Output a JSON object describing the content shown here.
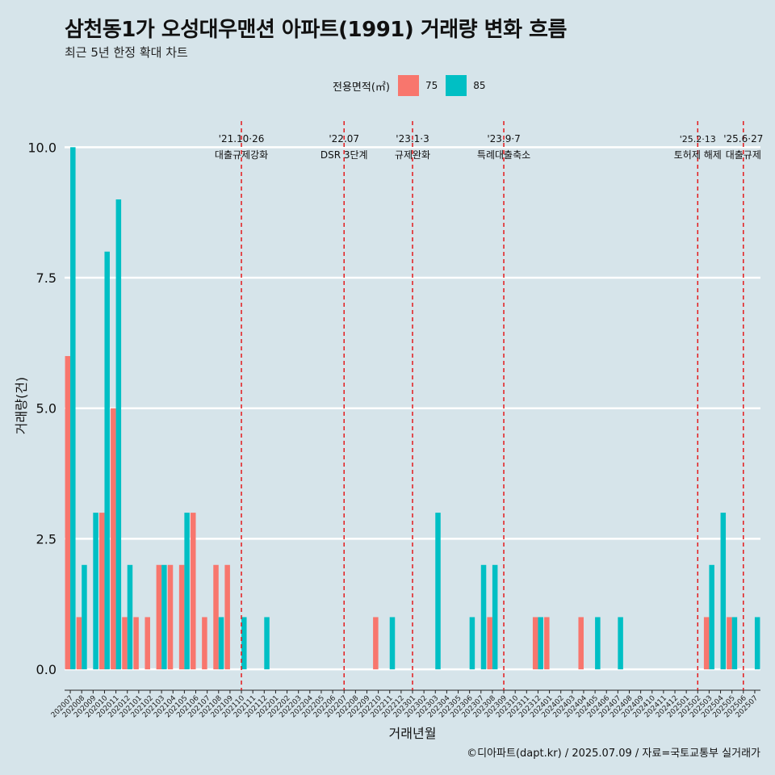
{
  "title": "삼천동1가 오성대우맨션 아파트(1991) 거래량 변화 흐름",
  "subtitle": "최근 5년 한정 확대 차트",
  "legend": {
    "title": "전용면적(㎡)",
    "items": [
      {
        "label": "75",
        "color": "#f8766d"
      },
      {
        "label": "85",
        "color": "#00bfc4"
      }
    ]
  },
  "caption": "©디아파트(dapt.kr) / 2025.07.09 / 자료=국토교통부 실거래가",
  "chart_data": {
    "type": "bar",
    "title": "삼천동1가 오성대우맨션 아파트(1991) 거래량 변화 흐름",
    "xlabel": "거래년월",
    "ylabel": "거래량(건)",
    "ylim": [
      -0.4,
      10.5
    ],
    "yticks": [
      "0.0",
      "2.5",
      "5.0",
      "7.5",
      "10.0"
    ],
    "ytick_values": [
      0,
      2.5,
      5,
      7.5,
      10
    ],
    "categories": [
      "202007",
      "202008",
      "202009",
      "202010",
      "202011",
      "202012",
      "202101",
      "202102",
      "202103",
      "202104",
      "202105",
      "202106",
      "202107",
      "202108",
      "202109",
      "202110",
      "202111",
      "202112",
      "202201",
      "202202",
      "202203",
      "202204",
      "202205",
      "202206",
      "202207",
      "202208",
      "202209",
      "202210",
      "202211",
      "202212",
      "202301",
      "202302",
      "202303",
      "202304",
      "202305",
      "202306",
      "202307",
      "202308",
      "202309",
      "202310",
      "202311",
      "202312",
      "202401",
      "202402",
      "202403",
      "202404",
      "202405",
      "202406",
      "202407",
      "202408",
      "202409",
      "202410",
      "202411",
      "202412",
      "202501",
      "202502",
      "202503",
      "202504",
      "202505",
      "202506",
      "202507"
    ],
    "series": [
      {
        "name": "75",
        "color": "#f8766d",
        "values": [
          6,
          1,
          0,
          3,
          5,
          1,
          1,
          1,
          2,
          2,
          2,
          3,
          1,
          2,
          2,
          0,
          0,
          0,
          0,
          0,
          0,
          0,
          0,
          0,
          0,
          0,
          0,
          1,
          0,
          0,
          0,
          0,
          0,
          0,
          0,
          0,
          0,
          1,
          0,
          0,
          0,
          1,
          1,
          0,
          0,
          1,
          0,
          0,
          0,
          0,
          0,
          0,
          0,
          0,
          0,
          0,
          1,
          0,
          1,
          0,
          0
        ]
      },
      {
        "name": "85",
        "color": "#00bfc4",
        "values": [
          10,
          2,
          3,
          8,
          9,
          2,
          0,
          0,
          2,
          0,
          3,
          0,
          0,
          1,
          0,
          1,
          0,
          1,
          0,
          0,
          0,
          0,
          0,
          0,
          0,
          0,
          0,
          0,
          1,
          0,
          0,
          0,
          3,
          0,
          0,
          1,
          2,
          2,
          0,
          0,
          0,
          1,
          0,
          0,
          0,
          0,
          1,
          0,
          1,
          0,
          0,
          0,
          0,
          0,
          0,
          0,
          2,
          3,
          1,
          0,
          1
        ]
      }
    ],
    "annotations": [
      {
        "category": "202110",
        "date": "'21.10·26",
        "label": "대출규제강화"
      },
      {
        "category": "202207",
        "date": "'22.07",
        "label": "DSR 3단계"
      },
      {
        "category": "202301",
        "date": "'23.1·3",
        "label": "규제완화"
      },
      {
        "category": "202309",
        "date": "'23.9·7",
        "label": "특례대출축소"
      },
      {
        "category": "202502",
        "date": "'25.2·13",
        "label": "토허제 해제"
      },
      {
        "category": "202506",
        "date": "'25.6·27",
        "label": "대출규제"
      }
    ]
  }
}
